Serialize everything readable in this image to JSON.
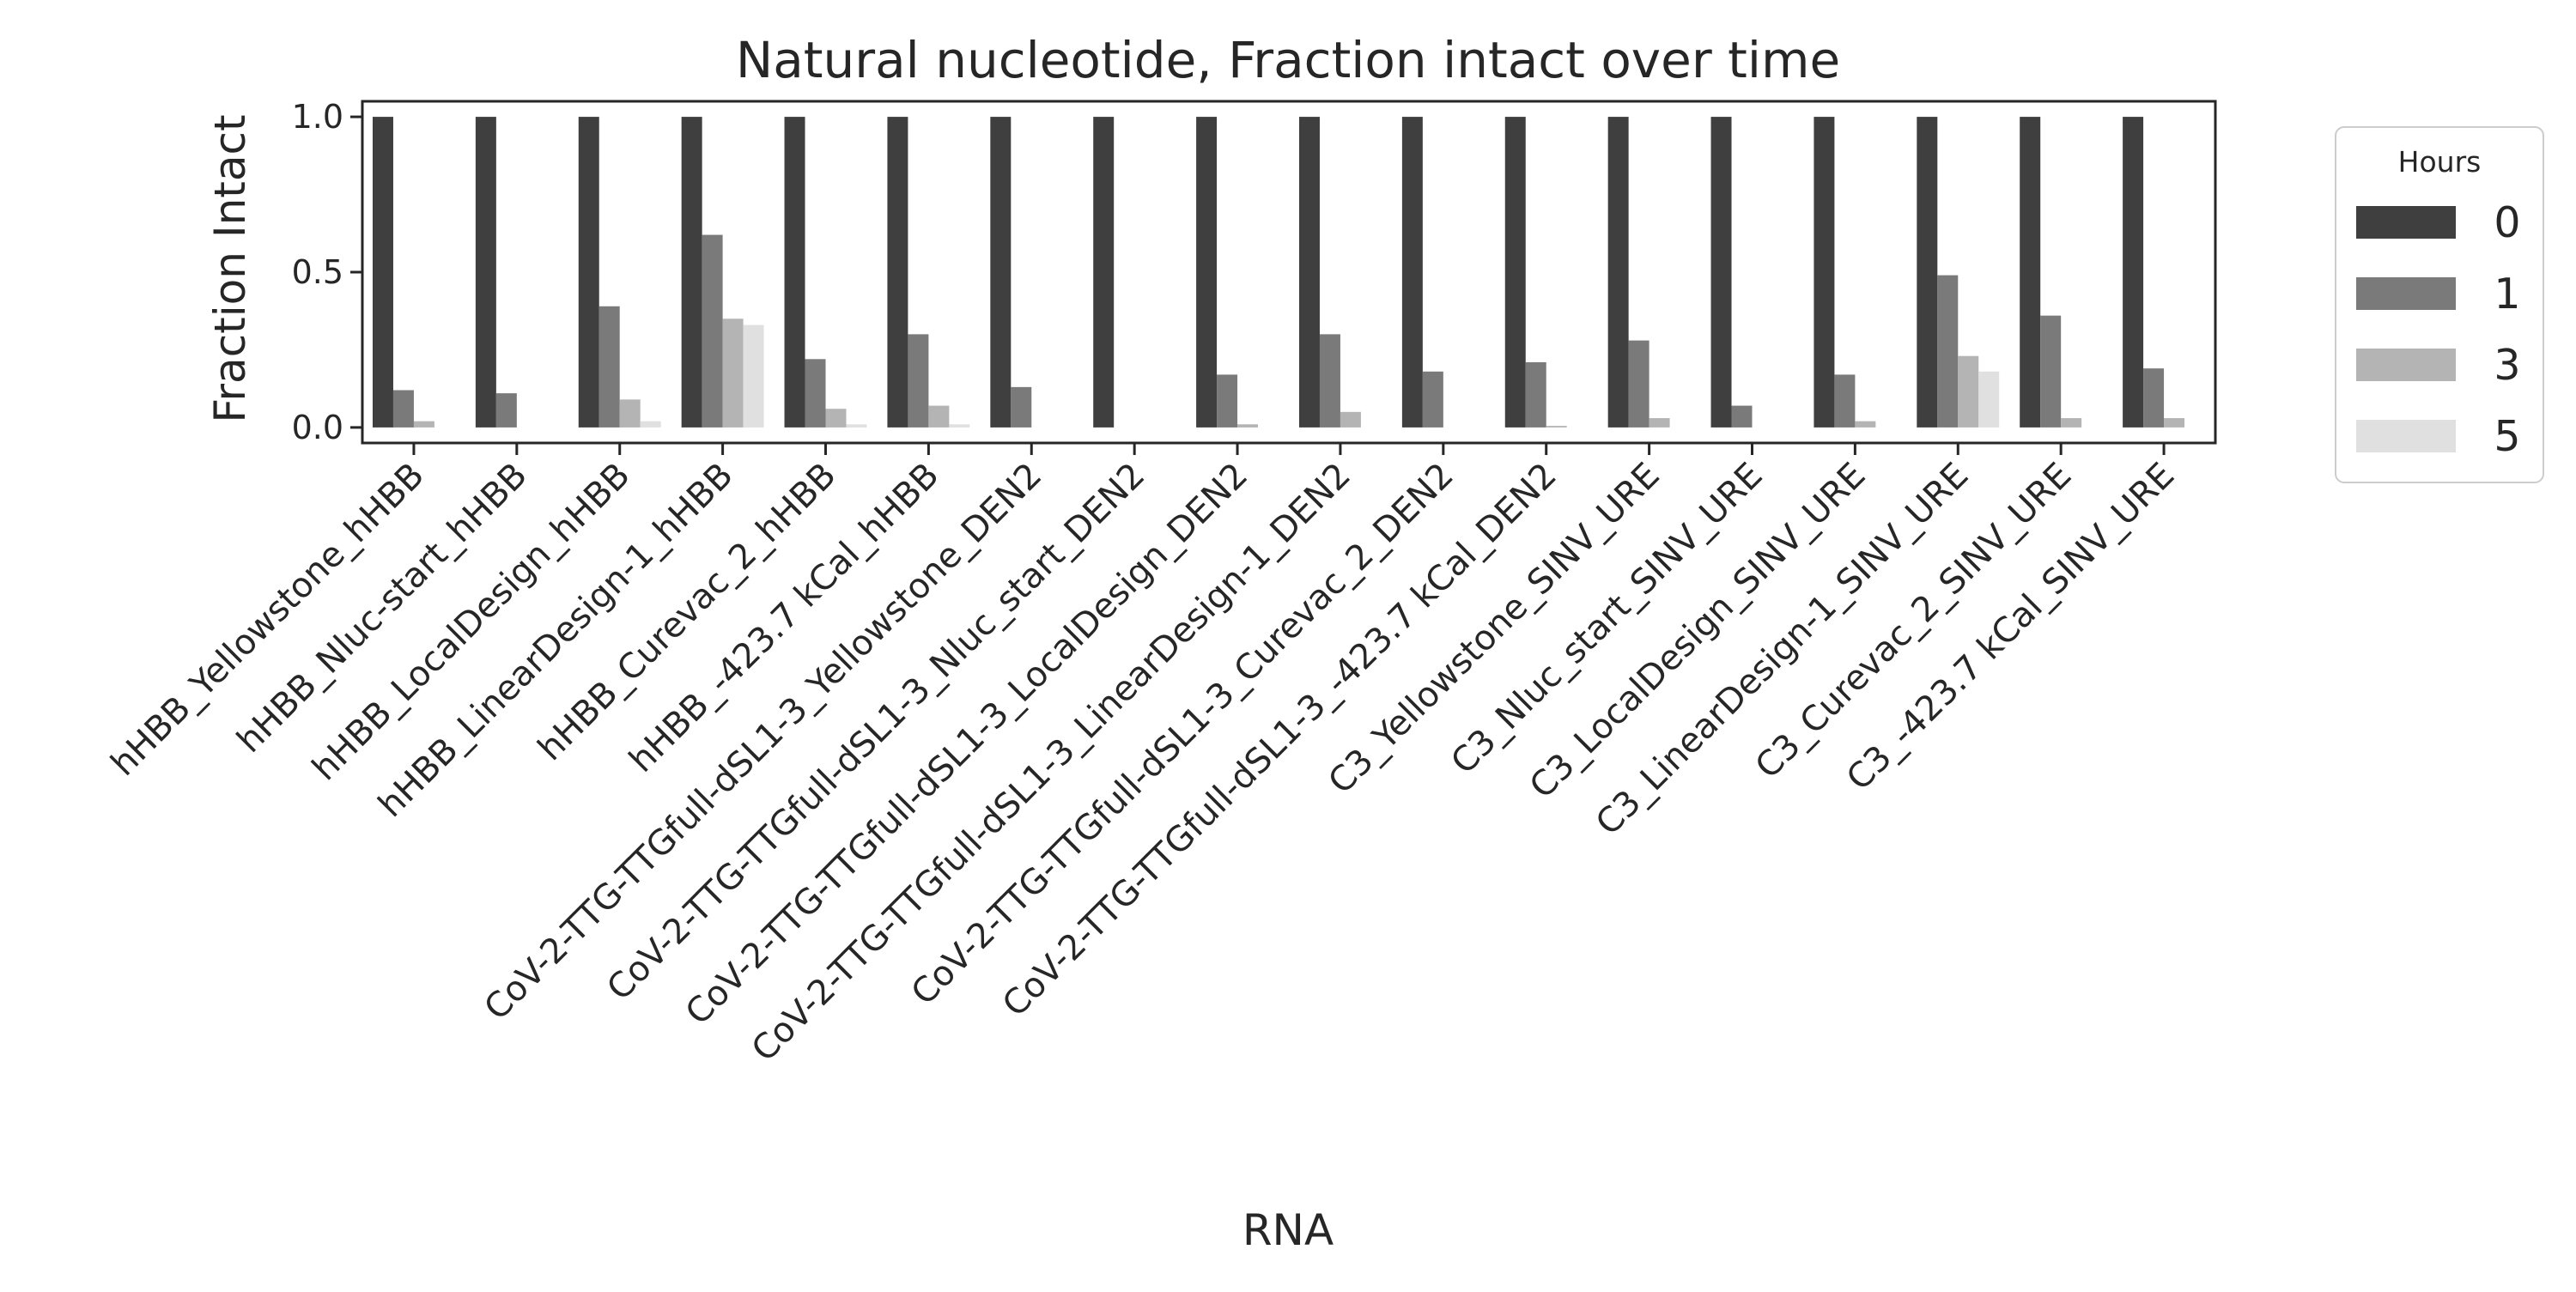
{
  "chart_data": {
    "type": "bar",
    "title": "Natural nucleotide, Fraction intact over time",
    "xlabel": "RNA",
    "ylabel": "Fraction Intact",
    "ylim": [
      -0.05,
      1.05
    ],
    "yticks": [
      "0.0",
      "0.5",
      "1.0"
    ],
    "grid": false,
    "legend": {
      "title": "Hours",
      "placement": "right-outside-top"
    },
    "categories": [
      "hHBB_Yellowstone_hHBB",
      "hHBB_Nluc-start_hHBB",
      "hHBB_LocalDesign_hHBB",
      "hHBB_LinearDesign-1_hHBB",
      "hHBB_Curevac_2_hHBB",
      "hHBB_-423.7 kCal_hHBB",
      "CoV-2-TTG-TTGfull-dSL1-3_Yellowstone_DEN2",
      "CoV-2-TTG-TTGfull-dSL1-3_Nluc_start_DEN2",
      "CoV-2-TTG-TTGfull-dSL1-3_LocalDesign_DEN2",
      "CoV-2-TTG-TTGfull-dSL1-3_LinearDesign-1_DEN2",
      "CoV-2-TTG-TTGfull-dSL1-3_Curevac_2_DEN2",
      "CoV-2-TTG-TTGfull-dSL1-3_-423.7 kCal_DEN2",
      "C3_Yellowstone_SINV_URE",
      "C3_Nluc_start_SINV_URE",
      "C3_LocalDesign_SINV_URE",
      "C3_LinearDesign-1_SINV_URE",
      "C3_Curevac_2_SINV_URE",
      "C3_-423.7 kCal_SINV_URE"
    ],
    "series": [
      {
        "name": "0",
        "color": "#3f3f3f",
        "values": [
          1.0,
          1.0,
          1.0,
          1.0,
          1.0,
          1.0,
          1.0,
          1.0,
          1.0,
          1.0,
          1.0,
          1.0,
          1.0,
          1.0,
          1.0,
          1.0,
          1.0,
          1.0
        ]
      },
      {
        "name": "1",
        "color": "#7a7a7a",
        "values": [
          0.12,
          0.11,
          0.39,
          0.62,
          0.22,
          0.3,
          0.13,
          0.0,
          0.17,
          0.3,
          0.18,
          0.21,
          0.28,
          0.07,
          0.17,
          0.49,
          0.36,
          0.19
        ]
      },
      {
        "name": "3",
        "color": "#b4b4b4",
        "values": [
          0.02,
          0.0,
          0.09,
          0.35,
          0.06,
          0.07,
          0.0,
          0.0,
          0.01,
          0.05,
          0.0,
          0.005,
          0.03,
          0.0,
          0.02,
          0.23,
          0.03,
          0.03
        ]
      },
      {
        "name": "5",
        "color": "#e0e0e0",
        "values": [
          0.0,
          0.0,
          0.02,
          0.33,
          0.01,
          0.01,
          0.0,
          0.0,
          0.0,
          0.0,
          0.0,
          0.0,
          0.0,
          0.0,
          0.0,
          0.18,
          0.0,
          0.0
        ]
      }
    ]
  }
}
